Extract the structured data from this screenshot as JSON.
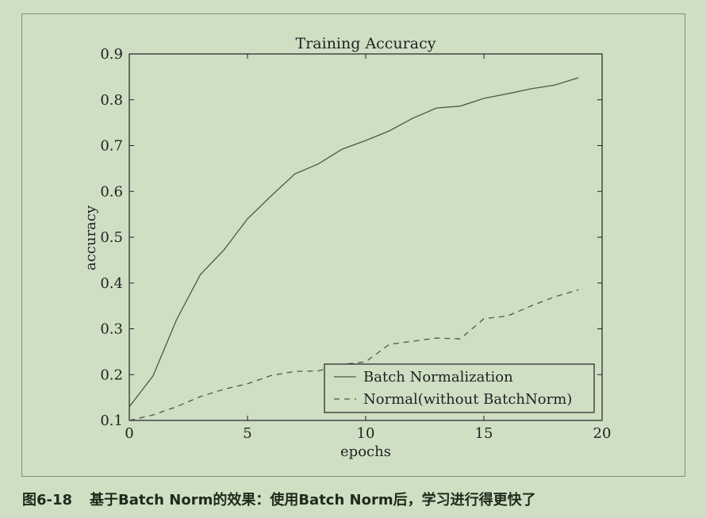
{
  "caption": {
    "number": "图6-18",
    "text": "基于Batch Norm的效果：使用Batch Norm后，学习进行得更快了"
  },
  "colors": {
    "background": "#cfdfc4",
    "line": "#4a5a44",
    "text": "#222222"
  },
  "chart_data": {
    "type": "line",
    "title": "Training Accuracy",
    "xlabel": "epochs",
    "ylabel": "accuracy",
    "xlim": [
      0,
      20
    ],
    "ylim": [
      0.1,
      0.9
    ],
    "xticks": [
      0,
      5,
      10,
      15,
      20
    ],
    "yticks": [
      0.1,
      0.2,
      0.3,
      0.4,
      0.5,
      0.6,
      0.7,
      0.8,
      0.9
    ],
    "xtick_labels": [
      "0",
      "5",
      "10",
      "15",
      "20"
    ],
    "ytick_labels": [
      "0.1",
      "0.2",
      "0.3",
      "0.4",
      "0.5",
      "0.6",
      "0.7",
      "0.8",
      "0.9"
    ],
    "grid": false,
    "legend_position": "lower-right",
    "series": [
      {
        "name": "Batch Normalization",
        "style": "solid",
        "x": [
          0,
          1,
          2,
          3,
          4,
          5,
          6,
          7,
          8,
          9,
          10,
          11,
          12,
          13,
          14,
          15,
          16,
          17,
          18,
          19
        ],
        "y": [
          0.13,
          0.197,
          0.32,
          0.418,
          0.472,
          0.54,
          0.59,
          0.638,
          0.66,
          0.692,
          0.711,
          0.732,
          0.76,
          0.782,
          0.786,
          0.803,
          0.813,
          0.824,
          0.832,
          0.848
        ]
      },
      {
        "name": "Normal(without BatchNorm)",
        "style": "dashed",
        "x": [
          0,
          1,
          2,
          3,
          4,
          5,
          6,
          7,
          8,
          9,
          10,
          11,
          12,
          13,
          14,
          15,
          16,
          17,
          18,
          19
        ],
        "y": [
          0.1,
          0.112,
          0.13,
          0.152,
          0.168,
          0.18,
          0.198,
          0.207,
          0.208,
          0.222,
          0.228,
          0.266,
          0.273,
          0.28,
          0.278,
          0.322,
          0.328,
          0.35,
          0.37,
          0.385
        ]
      }
    ]
  }
}
